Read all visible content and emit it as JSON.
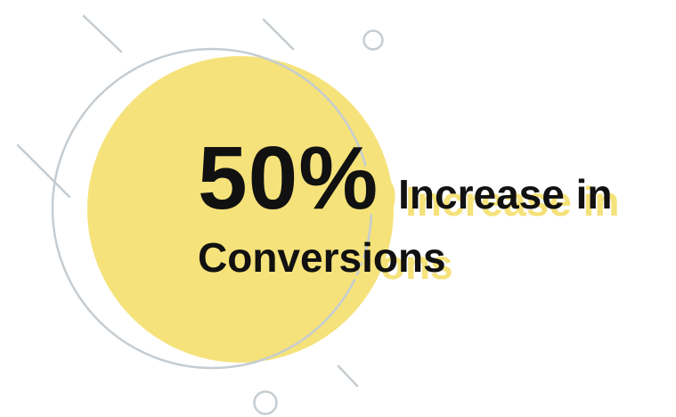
{
  "stat": {
    "value": "50%",
    "suffix": "Increase in",
    "line2": "Conversions"
  },
  "colors": {
    "accent_yellow": "#f5e27a",
    "shadow_yellow": "#f5e27a",
    "line_gray": "#c5cdd2",
    "text": "#111111",
    "background": "#ffffff"
  }
}
